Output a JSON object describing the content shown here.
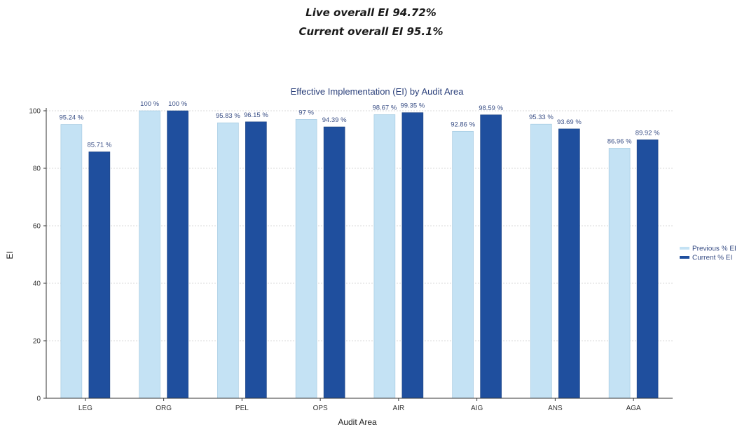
{
  "header": {
    "live_ei": "Live overall EI 94.72%",
    "current_ei": "Current overall EI 95.1%"
  },
  "chart_data": {
    "type": "bar",
    "title": "Effective Implementation (EI) by Audit Area",
    "xlabel": "Audit Area",
    "ylabel": "EI",
    "ylim": [
      0,
      100
    ],
    "yticks": [
      0,
      20,
      40,
      60,
      80,
      100
    ],
    "grid": true,
    "legend_position": "right",
    "categories": [
      "LEG",
      "ORG",
      "PEL",
      "OPS",
      "AIR",
      "AIG",
      "ANS",
      "AGA"
    ],
    "series": [
      {
        "name": "Previous % EI",
        "color": "#c4e2f4",
        "values": [
          95.24,
          100,
          95.83,
          97,
          98.67,
          92.86,
          95.33,
          86.96
        ],
        "labels": [
          "95.24 %",
          "100 %",
          "95.83 %",
          "97 %",
          "98.67 %",
          "92.86 %",
          "95.33 %",
          "86.96 %"
        ]
      },
      {
        "name": "Current % EI",
        "color": "#1f4f9e",
        "values": [
          85.71,
          100,
          96.15,
          94.39,
          99.35,
          98.59,
          93.69,
          89.92
        ],
        "labels": [
          "85.71 %",
          "100 %",
          "96.15 %",
          "94.39 %",
          "99.35 %",
          "98.59 %",
          "93.69 %",
          "89.92 %"
        ]
      }
    ]
  }
}
